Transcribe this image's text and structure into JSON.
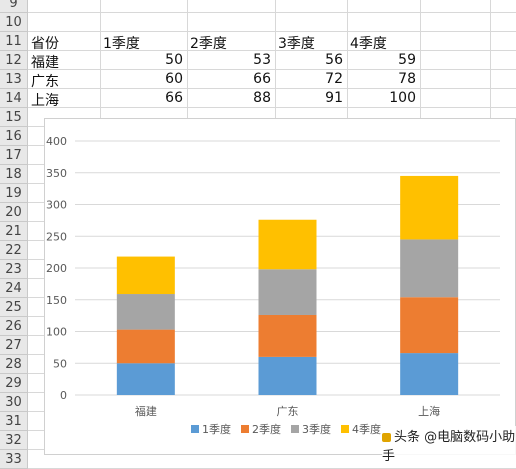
{
  "sheet": {
    "row_numbers": [
      "9",
      "10",
      "11",
      "12",
      "13",
      "14",
      "15",
      "16",
      "17",
      "18",
      "19",
      "20",
      "21",
      "22",
      "23",
      "24",
      "25",
      "26",
      "27",
      "28",
      "29",
      "30",
      "31",
      "32",
      "33"
    ],
    "header_row": [
      "省份",
      "1季度",
      "2季度",
      "3季度",
      "4季度"
    ],
    "rows": [
      {
        "province": "福建",
        "q": [
          "50",
          "53",
          "56",
          "59"
        ]
      },
      {
        "province": "广东",
        "q": [
          "60",
          "66",
          "72",
          "78"
        ]
      },
      {
        "province": "上海",
        "q": [
          "66",
          "88",
          "91",
          "100"
        ]
      }
    ]
  },
  "chart_data": {
    "type": "bar",
    "stacked": true,
    "categories": [
      "福建",
      "广东",
      "上海"
    ],
    "series": [
      {
        "name": "1季度",
        "values": [
          50,
          60,
          66
        ],
        "color": "#5b9bd5"
      },
      {
        "name": "2季度",
        "values": [
          53,
          66,
          88
        ],
        "color": "#ed7d31"
      },
      {
        "name": "3季度",
        "values": [
          56,
          72,
          91
        ],
        "color": "#a5a5a5"
      },
      {
        "name": "4季度",
        "values": [
          59,
          78,
          100
        ],
        "color": "#ffc000"
      }
    ],
    "y_ticks": [
      "0",
      "50",
      "100",
      "150",
      "200",
      "250",
      "300",
      "350",
      "400"
    ],
    "ylim": [
      0,
      400
    ],
    "grid": true,
    "legend": "bottom"
  },
  "watermark": {
    "text": "头条 @电脑数码小助手"
  }
}
